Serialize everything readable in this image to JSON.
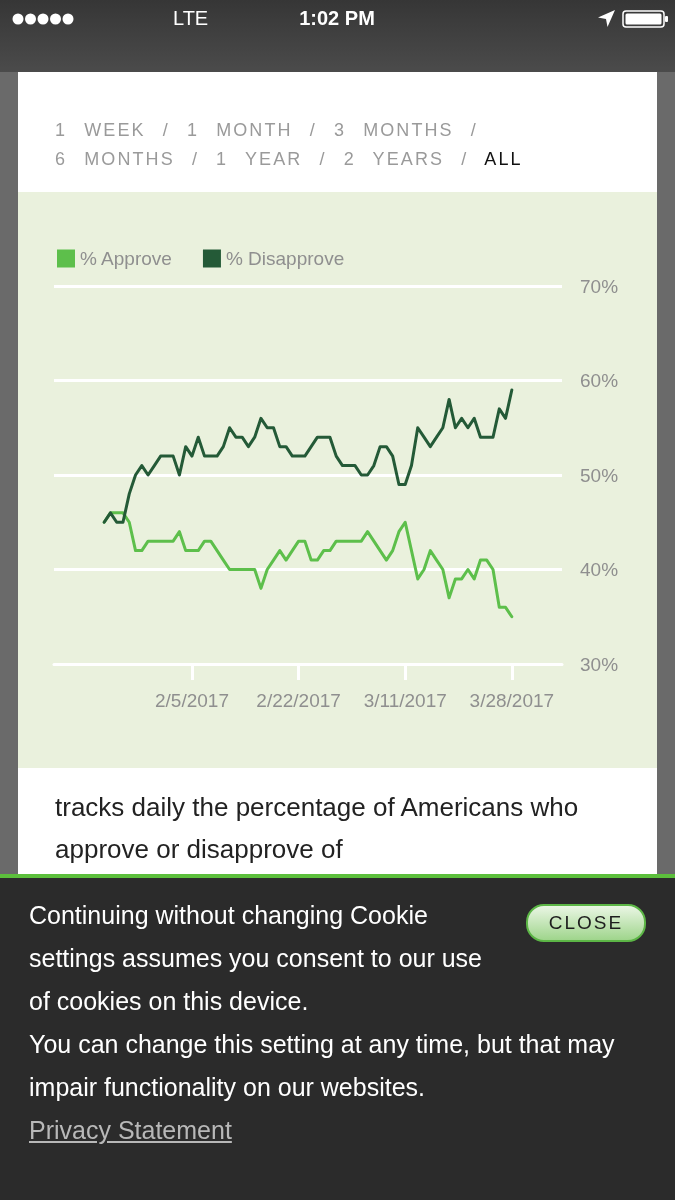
{
  "chart_data": {
    "type": "line",
    "x": [
      "2017-01-22",
      "2017-01-23",
      "2017-01-24",
      "2017-01-25",
      "2017-01-26",
      "2017-01-27",
      "2017-01-28",
      "2017-01-29",
      "2017-01-30",
      "2017-01-31",
      "2017-02-01",
      "2017-02-02",
      "2017-02-03",
      "2017-02-04",
      "2017-02-05",
      "2017-02-06",
      "2017-02-07",
      "2017-02-08",
      "2017-02-09",
      "2017-02-10",
      "2017-02-11",
      "2017-02-12",
      "2017-02-13",
      "2017-02-14",
      "2017-02-15",
      "2017-02-16",
      "2017-02-17",
      "2017-02-18",
      "2017-02-19",
      "2017-02-20",
      "2017-02-21",
      "2017-02-22",
      "2017-02-23",
      "2017-02-24",
      "2017-02-25",
      "2017-02-26",
      "2017-02-27",
      "2017-02-28",
      "2017-03-01",
      "2017-03-02",
      "2017-03-03",
      "2017-03-04",
      "2017-03-05",
      "2017-03-06",
      "2017-03-07",
      "2017-03-08",
      "2017-03-09",
      "2017-03-10",
      "2017-03-11",
      "2017-03-12",
      "2017-03-13",
      "2017-03-14",
      "2017-03-15",
      "2017-03-16",
      "2017-03-17",
      "2017-03-18",
      "2017-03-19",
      "2017-03-20",
      "2017-03-21",
      "2017-03-22",
      "2017-03-23",
      "2017-03-24",
      "2017-03-25",
      "2017-03-26",
      "2017-03-27",
      "2017-03-28"
    ],
    "series": [
      {
        "name": "% Approve",
        "color": "#5dbf4b",
        "values": [
          45,
          46,
          46,
          46,
          45,
          42,
          42,
          43,
          43,
          43,
          43,
          43,
          44,
          42,
          42,
          42,
          43,
          43,
          42,
          41,
          40,
          40,
          40,
          40,
          40,
          38,
          40,
          41,
          42,
          41,
          42,
          43,
          43,
          41,
          41,
          42,
          42,
          43,
          43,
          43,
          43,
          43,
          44,
          43,
          42,
          41,
          42,
          44,
          45,
          42,
          39,
          40,
          42,
          41,
          40,
          37,
          39,
          39,
          40,
          39,
          41,
          41,
          40,
          36,
          36,
          35
        ]
      },
      {
        "name": "% Disapprove",
        "color": "#245a37",
        "values": [
          45,
          46,
          45,
          45,
          48,
          50,
          51,
          50,
          51,
          52,
          52,
          52,
          50,
          53,
          52,
          54,
          52,
          52,
          52,
          53,
          55,
          54,
          54,
          53,
          54,
          56,
          55,
          55,
          53,
          53,
          52,
          52,
          52,
          53,
          54,
          54,
          54,
          52,
          51,
          51,
          51,
          50,
          50,
          51,
          53,
          53,
          52,
          49,
          49,
          51,
          55,
          54,
          53,
          54,
          55,
          58,
          55,
          56,
          55,
          56,
          54,
          54,
          54,
          57,
          56,
          59
        ]
      }
    ],
    "xlim": [
      "2017-01-14",
      "2017-04-05"
    ],
    "xticks": [
      {
        "value": "2017-02-05",
        "label": "2/5/2017"
      },
      {
        "value": "2017-02-22",
        "label": "2/22/2017"
      },
      {
        "value": "2017-03-11",
        "label": "3/11/2017"
      },
      {
        "value": "2017-03-28",
        "label": "3/28/2017"
      }
    ],
    "ylim": [
      30,
      70
    ],
    "yticks": [
      {
        "value": 30,
        "label": "30%"
      },
      {
        "value": 40,
        "label": "40%"
      },
      {
        "value": 50,
        "label": "50%"
      },
      {
        "value": 60,
        "label": "60%"
      },
      {
        "value": 70,
        "label": "70%"
      }
    ],
    "grid": "y",
    "legend": "top left",
    "marker": "none",
    "line_style": "solid",
    "annotations": [
      "LTE",
      "1:02 PM",
      "1 WEEK / 1 MONTH / 3 MONTHS /",
      "6 MONTHS / 1 YEAR / 2 YEARS /",
      "ALL",
      "tracks daily the percentage of Americans who approve or disapprove of",
      "Continuing without changing Cookie settings assumes you consent to our use of cookies on this device.",
      "You can change this setting at any time, but that may impair functionality on our websites.",
      "CLOSE",
      "Privacy Statement"
    ]
  }
}
